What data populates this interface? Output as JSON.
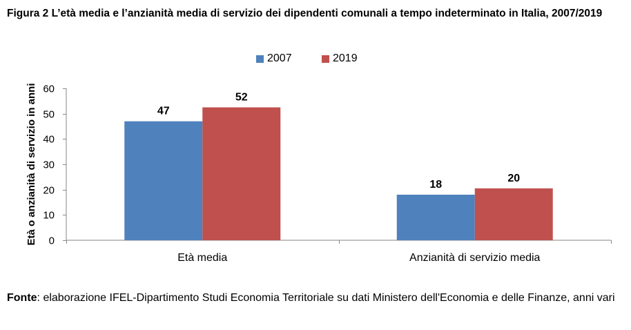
{
  "figure": {
    "title": "Figura 2 L’età media e l’anzianità media di servizio dei dipendenti comunali a tempo indeterminato in Italia, 2007/2019"
  },
  "colors": {
    "s2007": "#4f81bd",
    "s2019": "#c0504d",
    "axis": "#868686"
  },
  "chart_data": {
    "type": "bar",
    "title": "",
    "categories": [
      "Età media",
      "Anzianità di servizio media"
    ],
    "series": [
      {
        "name": "2007",
        "values": [
          47,
          18
        ],
        "labels": [
          "47",
          "18"
        ]
      },
      {
        "name": "2019",
        "values": [
          52.5,
          20.5
        ],
        "labels": [
          "52",
          "20"
        ]
      }
    ],
    "xlabel": "",
    "ylabel": "Età o anzianità di servizio in anni",
    "ylim": [
      0,
      60
    ],
    "yticks": [
      0,
      10,
      20,
      30,
      40,
      50,
      60
    ],
    "grid": false,
    "legend": "top-center"
  },
  "source": {
    "label": "Fonte",
    "text": ": elaborazione IFEL-Dipartimento Studi Economia Territoriale su dati Ministero dell'Economia e delle Finanze, anni vari"
  }
}
